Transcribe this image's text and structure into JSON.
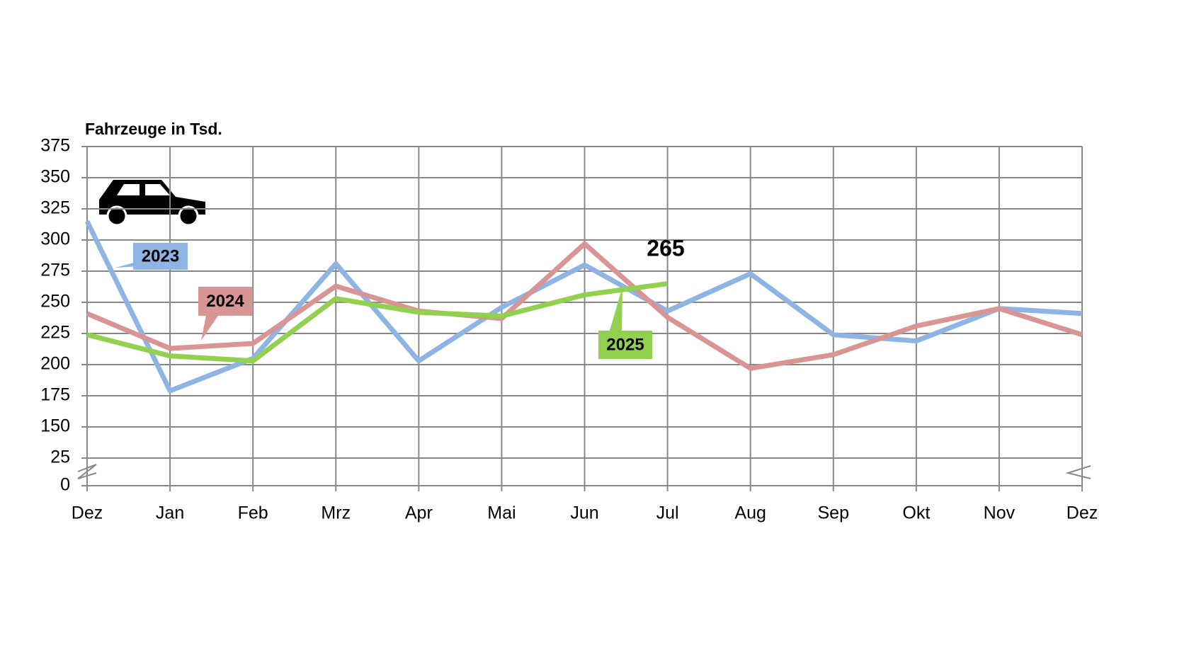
{
  "chart_data": {
    "type": "line",
    "y_label": "Fahrzeuge in Tsd.",
    "categories": [
      "Dez",
      "Jan",
      "Feb",
      "Mrz",
      "Apr",
      "Mai",
      "Jun",
      "Jul",
      "Aug",
      "Sep",
      "Okt",
      "Nov",
      "Dez"
    ],
    "series": [
      {
        "name": "2023",
        "color": "#8eb4e3",
        "values": [
          315,
          179,
          205,
          281,
          203,
          246,
          280,
          243,
          273,
          224,
          219,
          245,
          241
        ]
      },
      {
        "name": "2024",
        "color": "#d99594",
        "values": [
          241,
          213,
          217,
          263,
          243,
          237,
          297,
          238,
          197,
          208,
          231,
          245,
          224
        ]
      },
      {
        "name": "2025",
        "color": "#92d050",
        "values": [
          224,
          207,
          203,
          253,
          242,
          239,
          256,
          265,
          null,
          null,
          null,
          null,
          null
        ]
      }
    ],
    "annotation": "265",
    "ylim": [
      0,
      375
    ],
    "axis_break": [
      25,
      150
    ],
    "yticks": [
      0,
      25,
      150,
      175,
      200,
      225,
      250,
      275,
      300,
      325,
      350,
      375
    ],
    "grid": true
  }
}
